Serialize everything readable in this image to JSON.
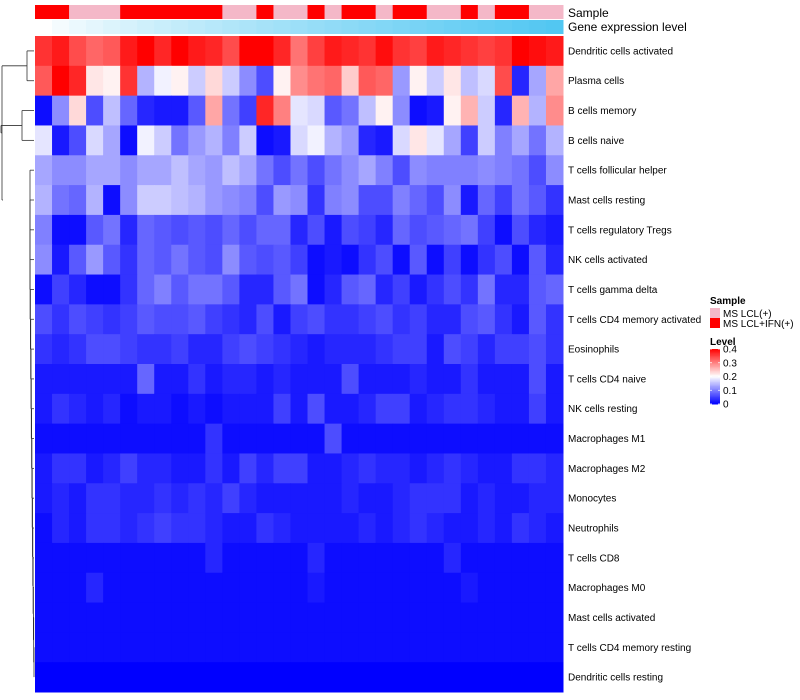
{
  "chart_data": {
    "type": "heatmap",
    "title": "",
    "annotation_labels": {
      "sample": "Sample",
      "gene_expression": "Gene expression level"
    },
    "rows": [
      "Dendritic cells activated",
      "Plasma cells",
      "B cells memory",
      "B cells naive",
      "T cells follicular helper",
      "Mast cells resting",
      "T cells regulatory  Tregs",
      "NK cells activated",
      "T cells gamma delta",
      "T cells CD4 memory activated",
      "Eosinophils",
      "T cells CD4 naive",
      "NK cells resting",
      "Macrophages M1",
      "Macrophages M2",
      "Monocytes",
      "Neutrophils",
      "T cells CD8",
      "Macrophages M0",
      "Mast cells activated",
      "T cells CD4 memory resting",
      "Dendritic cells resting"
    ],
    "n_columns": 31,
    "sample_annotation": [
      1,
      1,
      0,
      0,
      0,
      1,
      1,
      1,
      1,
      1,
      1,
      0,
      0,
      1,
      0,
      0,
      1,
      0,
      1,
      1,
      0,
      1,
      1,
      0,
      0,
      1,
      0,
      1,
      1,
      0,
      0
    ],
    "sample_legend": {
      "title": "Sample",
      "entries": [
        {
          "label": "MS LCL(+)",
          "color": "#f4b8c8"
        },
        {
          "label": "MS LCL+IFN(+)",
          "color": "#ff0000"
        }
      ]
    },
    "expression_gradient": {
      "from": "#ffffff",
      "to": "#52c7f2"
    },
    "level_legend": {
      "title": "Level",
      "ticks": [
        0,
        0.1,
        0.2,
        0.3,
        0.4
      ],
      "tick_labels": [
        "0",
        "0.1",
        "0.2",
        "0.3",
        "0.4"
      ],
      "range": [
        0,
        0.4
      ],
      "colors": [
        "#0000ff",
        "#ffffff",
        "#ff0000"
      ]
    },
    "values": [
      [
        0.36,
        0.38,
        0.34,
        0.32,
        0.33,
        0.38,
        0.4,
        0.37,
        0.4,
        0.38,
        0.37,
        0.34,
        0.4,
        0.4,
        0.37,
        0.31,
        0.35,
        0.38,
        0.37,
        0.36,
        0.39,
        0.36,
        0.35,
        0.38,
        0.37,
        0.36,
        0.35,
        0.36,
        0.4,
        0.39,
        0.38
      ],
      [
        0.33,
        0.4,
        0.37,
        0.22,
        0.21,
        0.36,
        0.14,
        0.19,
        0.21,
        0.16,
        0.23,
        0.16,
        0.11,
        0.06,
        0.21,
        0.29,
        0.31,
        0.32,
        0.24,
        0.33,
        0.32,
        0.12,
        0.21,
        0.16,
        0.22,
        0.15,
        0.17,
        0.34,
        0.03,
        0.13,
        0.27
      ],
      [
        0.01,
        0.11,
        0.23,
        0.06,
        0.15,
        0.08,
        0.03,
        0.02,
        0.02,
        0.07,
        0.27,
        0.09,
        0.05,
        0.37,
        0.3,
        0.18,
        0.17,
        0.07,
        0.09,
        0.15,
        0.21,
        0.11,
        0.01,
        0.02,
        0.21,
        0.26,
        0.16,
        0.03,
        0.26,
        0.14,
        0.29
      ],
      [
        0.18,
        0.02,
        0.06,
        0.17,
        0.13,
        0.01,
        0.19,
        0.16,
        0.09,
        0.12,
        0.14,
        0.1,
        0.16,
        0.01,
        0.02,
        0.17,
        0.19,
        0.14,
        0.12,
        0.03,
        0.02,
        0.17,
        0.22,
        0.18,
        0.13,
        0.05,
        0.16,
        0.1,
        0.13,
        0.09,
        0.14
      ],
      [
        0.13,
        0.11,
        0.11,
        0.13,
        0.13,
        0.11,
        0.13,
        0.13,
        0.15,
        0.13,
        0.12,
        0.15,
        0.13,
        0.09,
        0.06,
        0.09,
        0.06,
        0.09,
        0.11,
        0.13,
        0.1,
        0.06,
        0.11,
        0.1,
        0.1,
        0.1,
        0.11,
        0.1,
        0.09,
        0.06,
        0.11
      ],
      [
        0.14,
        0.09,
        0.08,
        0.14,
        0.01,
        0.11,
        0.16,
        0.16,
        0.15,
        0.14,
        0.12,
        0.11,
        0.1,
        0.06,
        0.12,
        0.11,
        0.04,
        0.1,
        0.11,
        0.06,
        0.06,
        0.1,
        0.08,
        0.06,
        0.11,
        0.02,
        0.08,
        0.05,
        0.09,
        0.07,
        0.04
      ],
      [
        0.1,
        0.01,
        0.01,
        0.07,
        0.09,
        0.03,
        0.08,
        0.07,
        0.06,
        0.07,
        0.06,
        0.08,
        0.06,
        0.08,
        0.08,
        0.03,
        0.06,
        0.02,
        0.06,
        0.05,
        0.03,
        0.08,
        0.06,
        0.07,
        0.08,
        0.09,
        0.05,
        0.01,
        0.06,
        0.03,
        0.02
      ],
      [
        0.11,
        0.02,
        0.07,
        0.12,
        0.07,
        0.04,
        0.08,
        0.07,
        0.09,
        0.07,
        0.06,
        0.11,
        0.07,
        0.06,
        0.07,
        0.05,
        0.01,
        0.02,
        0.01,
        0.04,
        0.06,
        0.01,
        0.07,
        0.01,
        0.05,
        0.01,
        0.04,
        0.06,
        0.01,
        0.07,
        0.03
      ],
      [
        0.01,
        0.05,
        0.03,
        0.01,
        0.01,
        0.04,
        0.08,
        0.1,
        0.07,
        0.09,
        0.09,
        0.07,
        0.03,
        0.03,
        0.07,
        0.09,
        0.01,
        0.03,
        0.07,
        0.08,
        0.03,
        0.05,
        0.02,
        0.04,
        0.06,
        0.04,
        0.09,
        0.03,
        0.03,
        0.07,
        0.08
      ],
      [
        0.06,
        0.04,
        0.06,
        0.05,
        0.04,
        0.05,
        0.07,
        0.06,
        0.06,
        0.07,
        0.05,
        0.04,
        0.03,
        0.06,
        0.02,
        0.05,
        0.06,
        0.04,
        0.04,
        0.05,
        0.06,
        0.04,
        0.05,
        0.03,
        0.03,
        0.06,
        0.07,
        0.04,
        0.02,
        0.07,
        0.04
      ],
      [
        0.04,
        0.03,
        0.04,
        0.06,
        0.06,
        0.05,
        0.04,
        0.04,
        0.05,
        0.03,
        0.03,
        0.05,
        0.06,
        0.05,
        0.04,
        0.03,
        0.02,
        0.03,
        0.03,
        0.03,
        0.04,
        0.05,
        0.05,
        0.02,
        0.06,
        0.05,
        0.03,
        0.05,
        0.05,
        0.06,
        0.04
      ],
      [
        0.02,
        0.02,
        0.02,
        0.02,
        0.02,
        0.02,
        0.08,
        0.02,
        0.02,
        0.04,
        0.02,
        0.03,
        0.03,
        0.02,
        0.03,
        0.02,
        0.02,
        0.02,
        0.06,
        0.02,
        0.02,
        0.02,
        0.03,
        0.02,
        0.02,
        0.04,
        0.02,
        0.02,
        0.02,
        0.06,
        0.02
      ],
      [
        0.02,
        0.04,
        0.03,
        0.02,
        0.03,
        0.01,
        0.02,
        0.02,
        0.01,
        0.02,
        0.01,
        0.02,
        0.02,
        0.02,
        0.05,
        0.02,
        0.06,
        0.02,
        0.02,
        0.03,
        0.05,
        0.05,
        0.02,
        0.03,
        0.04,
        0.04,
        0.03,
        0.02,
        0.02,
        0.05,
        0.02
      ],
      [
        0.01,
        0.01,
        0.01,
        0.01,
        0.01,
        0.01,
        0.01,
        0.01,
        0.01,
        0.01,
        0.04,
        0.01,
        0.01,
        0.01,
        0.01,
        0.01,
        0.01,
        0.06,
        0.01,
        0.01,
        0.01,
        0.01,
        0.01,
        0.01,
        0.01,
        0.01,
        0.01,
        0.01,
        0.01,
        0.01,
        0.01
      ],
      [
        0.02,
        0.04,
        0.04,
        0.02,
        0.03,
        0.05,
        0.03,
        0.03,
        0.02,
        0.02,
        0.04,
        0.02,
        0.05,
        0.03,
        0.05,
        0.05,
        0.02,
        0.02,
        0.03,
        0.04,
        0.03,
        0.03,
        0.02,
        0.03,
        0.04,
        0.03,
        0.02,
        0.02,
        0.04,
        0.04,
        0.03
      ],
      [
        0.02,
        0.03,
        0.02,
        0.04,
        0.04,
        0.03,
        0.03,
        0.04,
        0.03,
        0.04,
        0.03,
        0.05,
        0.03,
        0.02,
        0.02,
        0.02,
        0.02,
        0.02,
        0.03,
        0.02,
        0.02,
        0.03,
        0.04,
        0.04,
        0.04,
        0.02,
        0.03,
        0.02,
        0.02,
        0.03,
        0.03
      ],
      [
        0.01,
        0.03,
        0.02,
        0.04,
        0.04,
        0.03,
        0.04,
        0.05,
        0.04,
        0.04,
        0.03,
        0.02,
        0.02,
        0.04,
        0.03,
        0.02,
        0.02,
        0.02,
        0.02,
        0.03,
        0.02,
        0.03,
        0.04,
        0.03,
        0.02,
        0.02,
        0.03,
        0.02,
        0.04,
        0.03,
        0.02
      ],
      [
        0.01,
        0.01,
        0.01,
        0.01,
        0.01,
        0.01,
        0.01,
        0.01,
        0.01,
        0.01,
        0.03,
        0.01,
        0.01,
        0.01,
        0.01,
        0.01,
        0.03,
        0.01,
        0.01,
        0.01,
        0.01,
        0.01,
        0.01,
        0.01,
        0.03,
        0.01,
        0.01,
        0.01,
        0.01,
        0.01,
        0.01
      ],
      [
        0.01,
        0.01,
        0.01,
        0.03,
        0.01,
        0.01,
        0.01,
        0.01,
        0.01,
        0.01,
        0.01,
        0.01,
        0.01,
        0.01,
        0.01,
        0.01,
        0.02,
        0.01,
        0.01,
        0.01,
        0.01,
        0.01,
        0.01,
        0.01,
        0.01,
        0.02,
        0.01,
        0.01,
        0.01,
        0.01,
        0.01
      ],
      [
        0.01,
        0.01,
        0.01,
        0.01,
        0.01,
        0.01,
        0.01,
        0.01,
        0.01,
        0.01,
        0.01,
        0.01,
        0.01,
        0.01,
        0.01,
        0.01,
        0.01,
        0.01,
        0.01,
        0.01,
        0.01,
        0.01,
        0.01,
        0.01,
        0.01,
        0.01,
        0.01,
        0.01,
        0.01,
        0.01,
        0.01
      ],
      [
        0.01,
        0.01,
        0.01,
        0.01,
        0.01,
        0.01,
        0.01,
        0.01,
        0.01,
        0.01,
        0.01,
        0.01,
        0.01,
        0.01,
        0.01,
        0.01,
        0.01,
        0.01,
        0.01,
        0.01,
        0.01,
        0.01,
        0.01,
        0.01,
        0.01,
        0.01,
        0.01,
        0.01,
        0.01,
        0.01,
        0.01
      ],
      [
        0.0,
        0.0,
        0.0,
        0.0,
        0.0,
        0.0,
        0.0,
        0.0,
        0.0,
        0.0,
        0.0,
        0.0,
        0.0,
        0.0,
        0.0,
        0.0,
        0.0,
        0.0,
        0.0,
        0.0,
        0.0,
        0.0,
        0.0,
        0.0,
        0.0,
        0.0,
        0.0,
        0.0,
        0.0,
        0.0,
        0.0
      ]
    ]
  }
}
